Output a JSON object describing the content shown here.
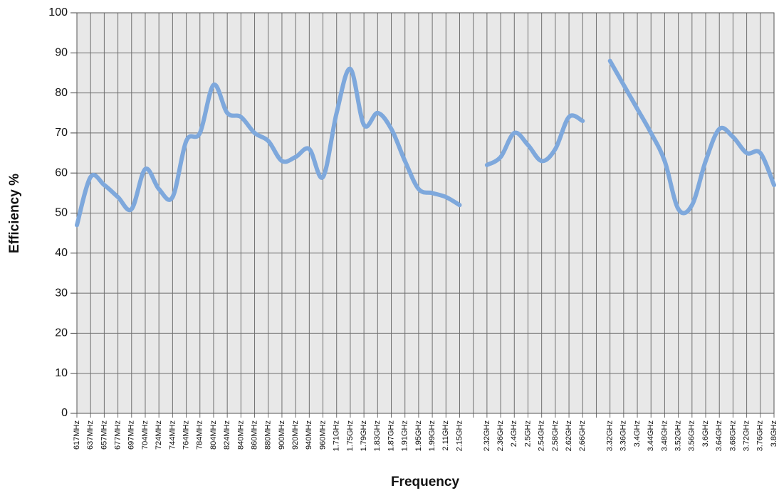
{
  "chart_data": {
    "type": "line",
    "x_label": "Frequency",
    "y_label": "Efficiency %",
    "categories": [
      "617MHz",
      "637MHz",
      "657MHz",
      "677MHz",
      "697MHz",
      "704MHz",
      "724MHz",
      "744MHz",
      "764MHz",
      "784MHz",
      "804MHz",
      "824MHz",
      "840MHz",
      "860MHz",
      "880MHz",
      "900MHz",
      "920MHz",
      "940MHz",
      "960MHz",
      "1.71GHz",
      "1.75GHz",
      "1.79GHz",
      "1.83GHz",
      "1.87GHz",
      "1.91GHz",
      "1.95GHz",
      "1.99GHz",
      "2.11GHz",
      "2.15GHz",
      null,
      "2.32GHz",
      "2.36GHz",
      "2.4GHz",
      "2.5GHz",
      "2.54GHz",
      "2.58GHz",
      "2.62GHz",
      "2.66GHz",
      null,
      "3.32GHz",
      "3.36GHz",
      "3.4GHz",
      "3.44GHz",
      "3.48GHz",
      "3.52GHz",
      "3.56GHz",
      "3.6GHz",
      "3.64GHz",
      "3.68GHz",
      "3.72GHz",
      "3.76GHz",
      "3.8GHz"
    ],
    "series": [
      {
        "color": "#7ea8dc",
        "values": [
          47,
          59,
          57,
          54,
          51,
          61,
          56,
          54,
          68,
          70,
          82,
          75,
          74,
          70,
          68,
          63,
          64,
          66,
          59,
          75,
          86,
          72,
          75,
          71,
          63,
          56,
          55,
          54,
          52,
          null,
          62,
          64,
          70,
          67,
          63,
          66,
          74,
          73,
          null,
          88,
          82,
          76,
          70,
          63,
          51,
          52,
          63,
          71,
          69,
          65,
          65,
          57
        ]
      }
    ],
    "ylim": [
      0,
      100
    ],
    "yticks": [
      0,
      10,
      20,
      30,
      40,
      50,
      60,
      70,
      80,
      90,
      100
    ],
    "grid": true
  }
}
